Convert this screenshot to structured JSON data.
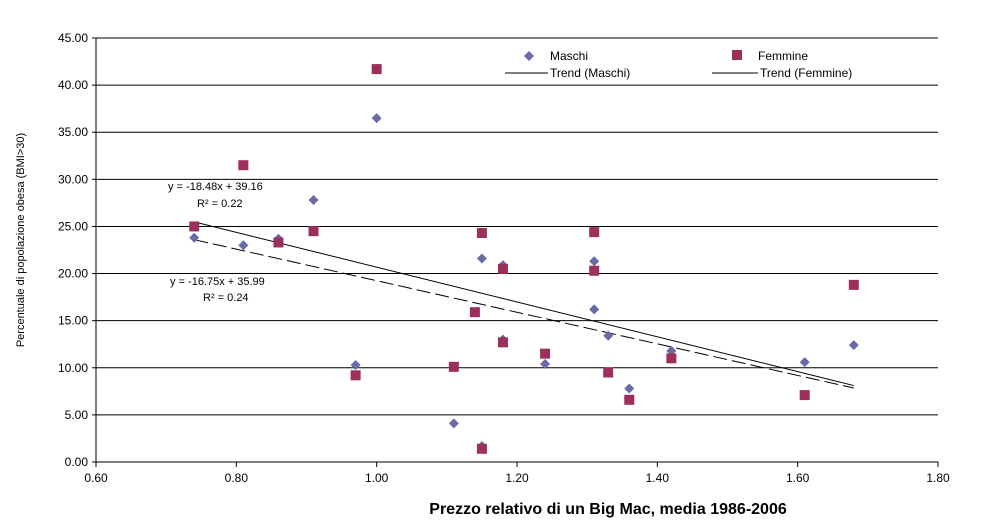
{
  "chart_data": {
    "type": "scatter",
    "title": "",
    "xlabel": "Prezzo relativo di un Big Mac, media 1986-2006",
    "ylabel": "Percentuale di popolazione obesa (BMI>30)",
    "xlim": [
      0.6,
      1.8
    ],
    "ylim": [
      0,
      45
    ],
    "x_ticks": [
      "0.60",
      "0.80",
      "1.00",
      "1.20",
      "1.40",
      "1.60",
      "1.80"
    ],
    "y_ticks": [
      "0.00",
      "5.00",
      "10.00",
      "15.00",
      "20.00",
      "25.00",
      "30.00",
      "35.00",
      "40.00",
      "45.00"
    ],
    "grid": "horizontal",
    "legend_position": "top-right",
    "series": [
      {
        "name": "Maschi",
        "marker": "diamond",
        "color": "#6a6aa8",
        "points": [
          [
            0.74,
            23.8
          ],
          [
            0.81,
            23.0
          ],
          [
            0.86,
            23.7
          ],
          [
            0.91,
            27.8
          ],
          [
            0.97,
            10.3
          ],
          [
            1.0,
            36.5
          ],
          [
            1.11,
            4.1
          ],
          [
            1.15,
            21.6
          ],
          [
            1.15,
            1.7
          ],
          [
            1.18,
            20.9
          ],
          [
            1.18,
            13.0
          ],
          [
            1.24,
            10.4
          ],
          [
            1.31,
            21.3
          ],
          [
            1.31,
            16.2
          ],
          [
            1.33,
            13.4
          ],
          [
            1.36,
            7.8
          ],
          [
            1.42,
            11.8
          ],
          [
            1.61,
            10.6
          ],
          [
            1.68,
            12.4
          ]
        ]
      },
      {
        "name": "Femmine",
        "marker": "square",
        "color": "#9c2f5c",
        "points": [
          [
            0.74,
            25.0
          ],
          [
            0.81,
            31.5
          ],
          [
            0.86,
            23.3
          ],
          [
            0.91,
            24.5
          ],
          [
            0.97,
            9.2
          ],
          [
            1.0,
            41.7
          ],
          [
            1.11,
            10.1
          ],
          [
            1.14,
            15.9
          ],
          [
            1.15,
            24.3
          ],
          [
            1.15,
            1.4
          ],
          [
            1.18,
            20.5
          ],
          [
            1.18,
            12.7
          ],
          [
            1.24,
            11.5
          ],
          [
            1.31,
            24.4
          ],
          [
            1.31,
            20.3
          ],
          [
            1.33,
            9.5
          ],
          [
            1.36,
            6.6
          ],
          [
            1.42,
            11.0
          ],
          [
            1.61,
            7.1
          ],
          [
            1.68,
            18.8
          ]
        ]
      }
    ],
    "trendlines": [
      {
        "name": "Trend (Maschi)",
        "style": "dashed",
        "slope": -16.75,
        "intercept": 35.99,
        "x_range": [
          0.74,
          1.68
        ],
        "equation_label": "y = -16.75x + 35.99",
        "r2_label": "R² = 0.24"
      },
      {
        "name": "Trend (Femmine)",
        "style": "solid",
        "slope": -18.48,
        "intercept": 39.16,
        "x_range": [
          0.74,
          1.68
        ],
        "equation_label": "y = -18.48x + 39.16",
        "r2_label": "R² = 0.22"
      }
    ]
  }
}
